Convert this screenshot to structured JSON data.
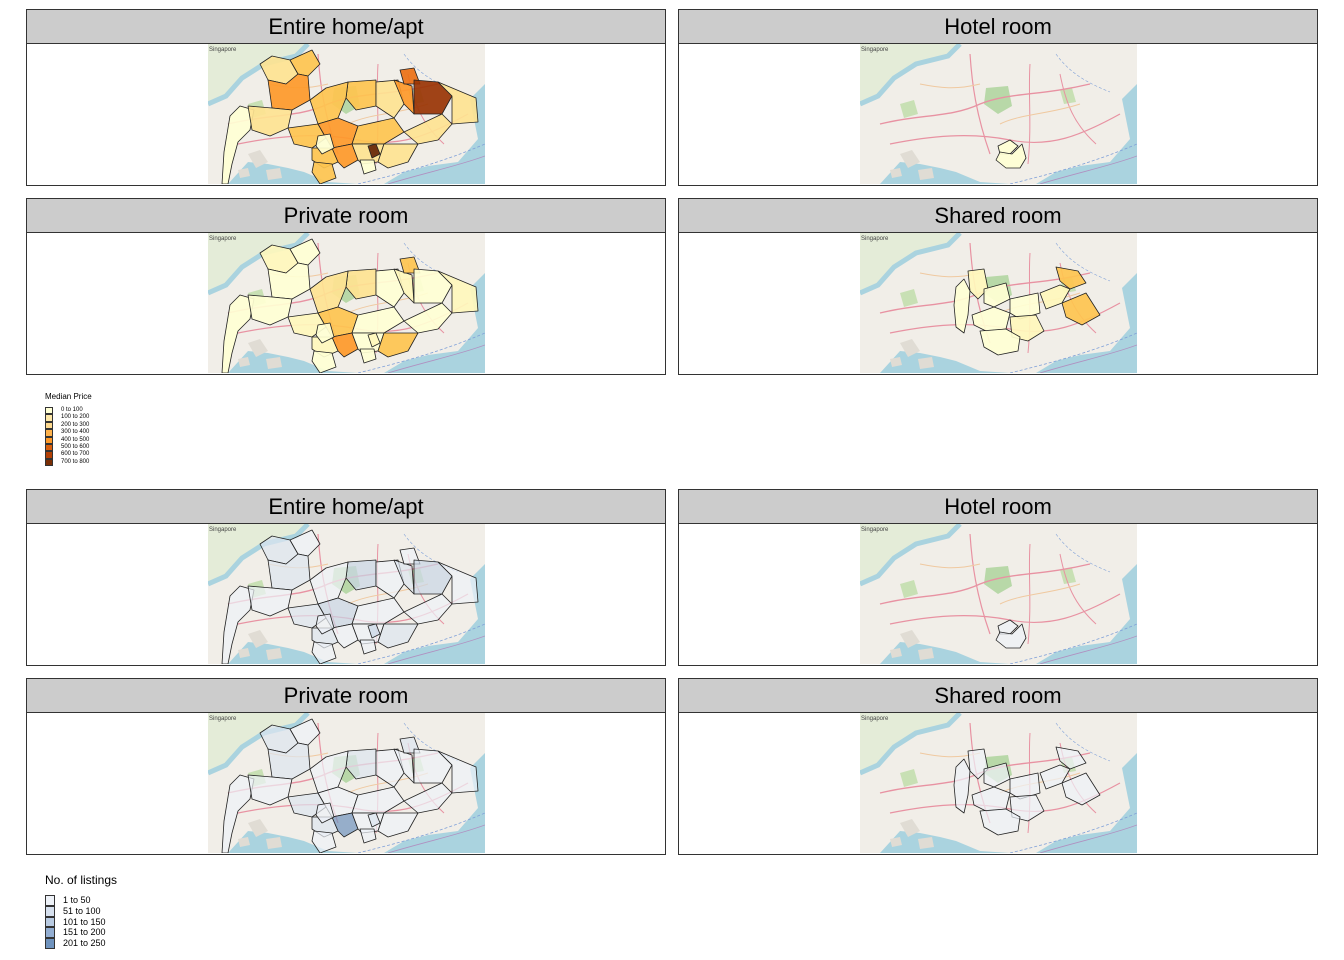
{
  "map_credit": "Singapore",
  "price_section": {
    "panels": [
      {
        "title": "Entire home/apt",
        "fills": [
          "#ffffd4",
          "#fee391",
          "#fec44f",
          "#fec44f",
          "#fee391",
          "#fe9929",
          "#ec7014",
          "#993404",
          "#fee391",
          "#fe9929",
          "#fec44f",
          "#fee391",
          "#fec44f",
          "#fe9929",
          "#fec44f",
          "#fee391",
          "#fec44f",
          "#fe9929",
          "#fee391",
          "#662506",
          "#fec44f",
          "#fee391"
        ]
      },
      {
        "title": "Hotel room",
        "fills": [
          "#ffffd4",
          "#ffffd4"
        ]
      },
      {
        "title": "Private room",
        "fills": [
          "#ffffd4",
          "#fff7bc",
          "#ffffd4",
          "#fee391",
          "#ffffd4",
          "#fff7bc",
          "#fec44f",
          "#ffffd4",
          "#fff7bc",
          "#ffffd4",
          "#fee391",
          "#ffffd4",
          "#fff7bc",
          "#fec44f",
          "#ffffd4",
          "#ffffd4",
          "#fff7bc",
          "#fe9929",
          "#ffffd4",
          "#fff7bc",
          "#ffffd4",
          "#fec44f"
        ]
      },
      {
        "title": "Shared room",
        "fills": [
          "#ffffd4",
          "#fff7bc",
          "#fec44f",
          "#ffffd4",
          "#ffffd4",
          "#fff7bc",
          "#fec44f",
          "#ffffd4",
          "#fff7bc",
          "#ffffd4"
        ]
      }
    ],
    "legend": {
      "title": "Median Price",
      "items": [
        {
          "label": "0 to 100",
          "color": "#ffffd4"
        },
        {
          "label": "100 to 200",
          "color": "#fee8a8"
        },
        {
          "label": "200 to 300",
          "color": "#fed98e"
        },
        {
          "label": "300 to 400",
          "color": "#feb24c"
        },
        {
          "label": "400 to 500",
          "color": "#fe9929"
        },
        {
          "label": "500 to 600",
          "color": "#d95f0e"
        },
        {
          "label": "600 to 700",
          "color": "#b34005"
        },
        {
          "label": "700 to 800",
          "color": "#7a2e05"
        }
      ]
    }
  },
  "listing_section": {
    "panels": [
      {
        "title": "Entire home/apt",
        "fills": [
          "#eef2f8",
          "#dde5f0",
          "#eef2f8",
          "#c9d5e6",
          "#eef2f8",
          "#dde5f0",
          "#eef2f8",
          "#c9d5e6",
          "#eef2f8",
          "#dde5f0",
          "#eef2f8",
          "#eef2f8",
          "#dde5f0",
          "#c9d5e6",
          "#eef2f8",
          "#eef2f8",
          "#dde5f0",
          "#eef2f8",
          "#eef2f8",
          "#c9d5e6",
          "#eef2f8",
          "#dde5f0"
        ]
      },
      {
        "title": "Hotel room",
        "fills": [
          "#eef2f8",
          "#eef2f8"
        ]
      },
      {
        "title": "Private room",
        "fills": [
          "#eef2f8",
          "#dde5f0",
          "#eef2f8",
          "#dde5f0",
          "#eef2f8",
          "#eef2f8",
          "#dde5f0",
          "#eef2f8",
          "#eef2f8",
          "#dde5f0",
          "#eef2f8",
          "#eef2f8",
          "#dde5f0",
          "#eef2f8",
          "#eef2f8",
          "#eef2f8",
          "#dde5f0",
          "#6f93be",
          "#eef2f8",
          "#dde5f0",
          "#eef2f8",
          "#eef2f8"
        ]
      },
      {
        "title": "Shared room",
        "fills": [
          "#eef2f8",
          "#eef2f8",
          "#eef2f8",
          "#eef2f8",
          "#eef2f8",
          "#eef2f8",
          "#eef2f8",
          "#eef2f8",
          "#eef2f8",
          "#eef2f8"
        ]
      }
    ],
    "legend": {
      "title": "No. of listings",
      "items": [
        {
          "label": "1 to 50",
          "color": "#eef2f8"
        },
        {
          "label": "51 to 100",
          "color": "#d6e0ee"
        },
        {
          "label": "101 to 150",
          "color": "#b9cbe2"
        },
        {
          "label": "151 to 200",
          "color": "#93aed2"
        },
        {
          "label": "201 to 250",
          "color": "#6f93be"
        }
      ]
    }
  }
}
